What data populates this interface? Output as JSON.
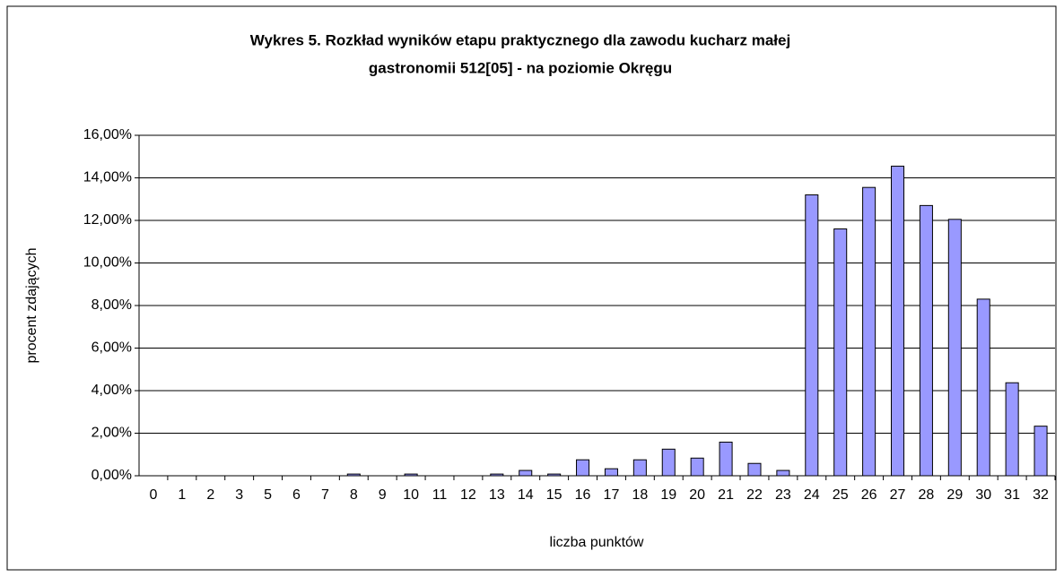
{
  "chart_data": {
    "type": "bar",
    "title": [
      "Wykres 5. Rozkład wyników etapu praktycznego dla zawodu kucharz małej",
      "gastronomii 512[05] - na poziomie Okręgu"
    ],
    "x_label": "liczba punktów",
    "y_label": "procent zdających",
    "categories": [
      "0",
      "1",
      "2",
      "3",
      "5",
      "6",
      "7",
      "8",
      "9",
      "10",
      "11",
      "12",
      "13",
      "14",
      "15",
      "16",
      "17",
      "18",
      "19",
      "20",
      "21",
      "22",
      "23",
      "24",
      "25",
      "26",
      "27",
      "28",
      "29",
      "30",
      "31",
      "32"
    ],
    "values": [
      0,
      0,
      0,
      0,
      0,
      0,
      0,
      0.08,
      0,
      0.08,
      0,
      0,
      0.08,
      0.25,
      0.08,
      0.75,
      0.33,
      0.75,
      1.25,
      0.83,
      1.58,
      0.58,
      0.25,
      13.2,
      11.6,
      13.55,
      14.55,
      12.7,
      12.05,
      8.3,
      4.37,
      2.33
    ],
    "color": "#9999ff",
    "ylim": [
      0,
      16
    ],
    "yticks": [
      {
        "value": 0,
        "label": "0,00%"
      },
      {
        "value": 2,
        "label": "2,00%"
      },
      {
        "value": 4,
        "label": "4,00%"
      },
      {
        "value": 6,
        "label": "6,00%"
      },
      {
        "value": 8,
        "label": "8,00%"
      },
      {
        "value": 10,
        "label": "10,00%"
      },
      {
        "value": 12,
        "label": "12,00%"
      },
      {
        "value": 14,
        "label": "14,00%"
      },
      {
        "value": 16,
        "label": "16,00%"
      }
    ],
    "grid": true
  }
}
